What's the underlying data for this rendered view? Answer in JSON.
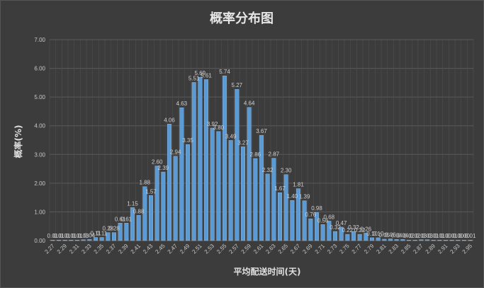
{
  "chart_data": {
    "type": "bar",
    "title": "概率分布图",
    "xlabel": "平均配送时间(天)",
    "ylabel": "概率(%)",
    "ylim": [
      0,
      7
    ],
    "yticks": [
      "0.00",
      "1.00",
      "2.00",
      "3.00",
      "4.00",
      "5.00",
      "6.00",
      "7.00"
    ],
    "xtick_labels": [
      "2.27",
      "2.29",
      "2.31",
      "2.33",
      "2.35",
      "2.37",
      "2.39",
      "2.41",
      "2.43",
      "2.45",
      "2.47",
      "2.49",
      "2.51",
      "2.53",
      "2.55",
      "2.57",
      "2.59",
      "2.61",
      "2.63",
      "2.65",
      "2.67",
      "2.69",
      "2.71",
      "2.73",
      "2.75",
      "2.77",
      "2.79",
      "2.81",
      "2.83",
      "2.85",
      "2.87",
      "2.89",
      "2.91",
      "2.93",
      "2.95"
    ],
    "grid": true,
    "bar_color": "#5b9bd5",
    "x": [
      2.27,
      2.28,
      2.29,
      2.3,
      2.31,
      2.32,
      2.33,
      2.34,
      2.35,
      2.36,
      2.37,
      2.38,
      2.39,
      2.4,
      2.41,
      2.42,
      2.43,
      2.44,
      2.45,
      2.46,
      2.47,
      2.48,
      2.49,
      2.5,
      2.51,
      2.52,
      2.53,
      2.54,
      2.55,
      2.56,
      2.57,
      2.58,
      2.59,
      2.6,
      2.61,
      2.62,
      2.63,
      2.64,
      2.65,
      2.66,
      2.67,
      2.68,
      2.69,
      2.7,
      2.71,
      2.72,
      2.73,
      2.74,
      2.75,
      2.76,
      2.77,
      2.78,
      2.79,
      2.8,
      2.81,
      2.82,
      2.83,
      2.84,
      2.85,
      2.86,
      2.87,
      2.88,
      2.89,
      2.9,
      2.91,
      2.92,
      2.93,
      2.94,
      2.95
    ],
    "values": [
      0.01,
      0.01,
      0.01,
      0.01,
      0.01,
      0.03,
      0.04,
      0.11,
      0.11,
      0.28,
      0.28,
      0.61,
      0.61,
      1.15,
      0.88,
      1.88,
      1.57,
      2.6,
      2.39,
      4.06,
      2.94,
      4.63,
      3.35,
      5.51,
      5.69,
      5.61,
      3.92,
      3.8,
      5.74,
      3.49,
      5.27,
      3.27,
      4.64,
      2.86,
      3.67,
      2.32,
      2.87,
      1.67,
      2.3,
      1.4,
      1.81,
      1.39,
      0.76,
      0.98,
      0.56,
      0.68,
      0.32,
      0.47,
      0.22,
      0.32,
      0.22,
      0.26,
      0.1,
      0.1,
      0.05,
      0.06,
      0.04,
      0.04,
      0.02,
      0.02,
      0.03,
      0.03,
      0.01,
      0.01,
      0.0,
      0.01,
      0.0,
      0.0,
      0.01
    ],
    "data_labels": [
      "0.01",
      "0.01",
      "0.01",
      "0.01",
      "0.01",
      "0.03",
      "0.04",
      "0.11",
      "0.11",
      "0.28",
      "0.28",
      "0.61",
      "0.61",
      "1.15",
      "0.88",
      "1.88",
      "1.57",
      "2.60",
      "2.39",
      "4.06",
      "2.94",
      "4.63",
      "3.35",
      "5.51",
      "5.69",
      "5.61",
      "3.92",
      "3.80",
      "5.74",
      "3.49",
      "5.27",
      "3.27",
      "4.64",
      "2.86",
      "3.67",
      "2.32",
      "2.87",
      "1.67",
      "2.30",
      "1.40",
      "1.81",
      "1.39",
      "0.76",
      "0.98",
      "0.56",
      "0.68",
      "0.32",
      "0.47",
      "0.22",
      "0.32",
      "0.22",
      "0.26",
      "0.10",
      "0.10",
      "0.05",
      "0.06",
      "0.04",
      "0.04",
      "0.02",
      "0.02",
      "0.03",
      "0.03",
      "0.01",
      "0.01",
      "0.00",
      "0.01",
      "0.00",
      "0.00",
      "0.01"
    ]
  }
}
